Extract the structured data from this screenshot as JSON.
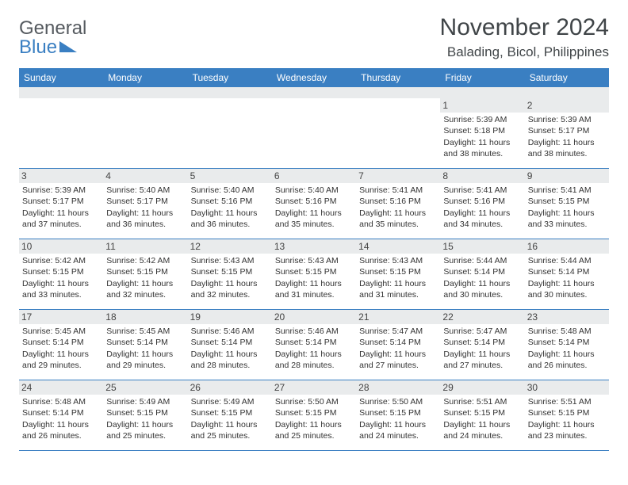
{
  "brand": {
    "name": "General",
    "sub": "Blue"
  },
  "title": "November 2024",
  "location": "Balading, Bicol, Philippines",
  "colors": {
    "accent": "#3a7fc2",
    "band": "#e9ebec",
    "text": "#404548",
    "white": "#ffffff"
  },
  "weekdays": [
    "Sunday",
    "Monday",
    "Tuesday",
    "Wednesday",
    "Thursday",
    "Friday",
    "Saturday"
  ],
  "weeks": [
    [
      null,
      null,
      null,
      null,
      null,
      {
        "n": "1",
        "sunrise": "Sunrise: 5:39 AM",
        "sunset": "Sunset: 5:18 PM",
        "daylight": "Daylight: 11 hours and 38 minutes."
      },
      {
        "n": "2",
        "sunrise": "Sunrise: 5:39 AM",
        "sunset": "Sunset: 5:17 PM",
        "daylight": "Daylight: 11 hours and 38 minutes."
      }
    ],
    [
      {
        "n": "3",
        "sunrise": "Sunrise: 5:39 AM",
        "sunset": "Sunset: 5:17 PM",
        "daylight": "Daylight: 11 hours and 37 minutes."
      },
      {
        "n": "4",
        "sunrise": "Sunrise: 5:40 AM",
        "sunset": "Sunset: 5:17 PM",
        "daylight": "Daylight: 11 hours and 36 minutes."
      },
      {
        "n": "5",
        "sunrise": "Sunrise: 5:40 AM",
        "sunset": "Sunset: 5:16 PM",
        "daylight": "Daylight: 11 hours and 36 minutes."
      },
      {
        "n": "6",
        "sunrise": "Sunrise: 5:40 AM",
        "sunset": "Sunset: 5:16 PM",
        "daylight": "Daylight: 11 hours and 35 minutes."
      },
      {
        "n": "7",
        "sunrise": "Sunrise: 5:41 AM",
        "sunset": "Sunset: 5:16 PM",
        "daylight": "Daylight: 11 hours and 35 minutes."
      },
      {
        "n": "8",
        "sunrise": "Sunrise: 5:41 AM",
        "sunset": "Sunset: 5:16 PM",
        "daylight": "Daylight: 11 hours and 34 minutes."
      },
      {
        "n": "9",
        "sunrise": "Sunrise: 5:41 AM",
        "sunset": "Sunset: 5:15 PM",
        "daylight": "Daylight: 11 hours and 33 minutes."
      }
    ],
    [
      {
        "n": "10",
        "sunrise": "Sunrise: 5:42 AM",
        "sunset": "Sunset: 5:15 PM",
        "daylight": "Daylight: 11 hours and 33 minutes."
      },
      {
        "n": "11",
        "sunrise": "Sunrise: 5:42 AM",
        "sunset": "Sunset: 5:15 PM",
        "daylight": "Daylight: 11 hours and 32 minutes."
      },
      {
        "n": "12",
        "sunrise": "Sunrise: 5:43 AM",
        "sunset": "Sunset: 5:15 PM",
        "daylight": "Daylight: 11 hours and 32 minutes."
      },
      {
        "n": "13",
        "sunrise": "Sunrise: 5:43 AM",
        "sunset": "Sunset: 5:15 PM",
        "daylight": "Daylight: 11 hours and 31 minutes."
      },
      {
        "n": "14",
        "sunrise": "Sunrise: 5:43 AM",
        "sunset": "Sunset: 5:15 PM",
        "daylight": "Daylight: 11 hours and 31 minutes."
      },
      {
        "n": "15",
        "sunrise": "Sunrise: 5:44 AM",
        "sunset": "Sunset: 5:14 PM",
        "daylight": "Daylight: 11 hours and 30 minutes."
      },
      {
        "n": "16",
        "sunrise": "Sunrise: 5:44 AM",
        "sunset": "Sunset: 5:14 PM",
        "daylight": "Daylight: 11 hours and 30 minutes."
      }
    ],
    [
      {
        "n": "17",
        "sunrise": "Sunrise: 5:45 AM",
        "sunset": "Sunset: 5:14 PM",
        "daylight": "Daylight: 11 hours and 29 minutes."
      },
      {
        "n": "18",
        "sunrise": "Sunrise: 5:45 AM",
        "sunset": "Sunset: 5:14 PM",
        "daylight": "Daylight: 11 hours and 29 minutes."
      },
      {
        "n": "19",
        "sunrise": "Sunrise: 5:46 AM",
        "sunset": "Sunset: 5:14 PM",
        "daylight": "Daylight: 11 hours and 28 minutes."
      },
      {
        "n": "20",
        "sunrise": "Sunrise: 5:46 AM",
        "sunset": "Sunset: 5:14 PM",
        "daylight": "Daylight: 11 hours and 28 minutes."
      },
      {
        "n": "21",
        "sunrise": "Sunrise: 5:47 AM",
        "sunset": "Sunset: 5:14 PM",
        "daylight": "Daylight: 11 hours and 27 minutes."
      },
      {
        "n": "22",
        "sunrise": "Sunrise: 5:47 AM",
        "sunset": "Sunset: 5:14 PM",
        "daylight": "Daylight: 11 hours and 27 minutes."
      },
      {
        "n": "23",
        "sunrise": "Sunrise: 5:48 AM",
        "sunset": "Sunset: 5:14 PM",
        "daylight": "Daylight: 11 hours and 26 minutes."
      }
    ],
    [
      {
        "n": "24",
        "sunrise": "Sunrise: 5:48 AM",
        "sunset": "Sunset: 5:14 PM",
        "daylight": "Daylight: 11 hours and 26 minutes."
      },
      {
        "n": "25",
        "sunrise": "Sunrise: 5:49 AM",
        "sunset": "Sunset: 5:15 PM",
        "daylight": "Daylight: 11 hours and 25 minutes."
      },
      {
        "n": "26",
        "sunrise": "Sunrise: 5:49 AM",
        "sunset": "Sunset: 5:15 PM",
        "daylight": "Daylight: 11 hours and 25 minutes."
      },
      {
        "n": "27",
        "sunrise": "Sunrise: 5:50 AM",
        "sunset": "Sunset: 5:15 PM",
        "daylight": "Daylight: 11 hours and 25 minutes."
      },
      {
        "n": "28",
        "sunrise": "Sunrise: 5:50 AM",
        "sunset": "Sunset: 5:15 PM",
        "daylight": "Daylight: 11 hours and 24 minutes."
      },
      {
        "n": "29",
        "sunrise": "Sunrise: 5:51 AM",
        "sunset": "Sunset: 5:15 PM",
        "daylight": "Daylight: 11 hours and 24 minutes."
      },
      {
        "n": "30",
        "sunrise": "Sunrise: 5:51 AM",
        "sunset": "Sunset: 5:15 PM",
        "daylight": "Daylight: 11 hours and 23 minutes."
      }
    ]
  ]
}
